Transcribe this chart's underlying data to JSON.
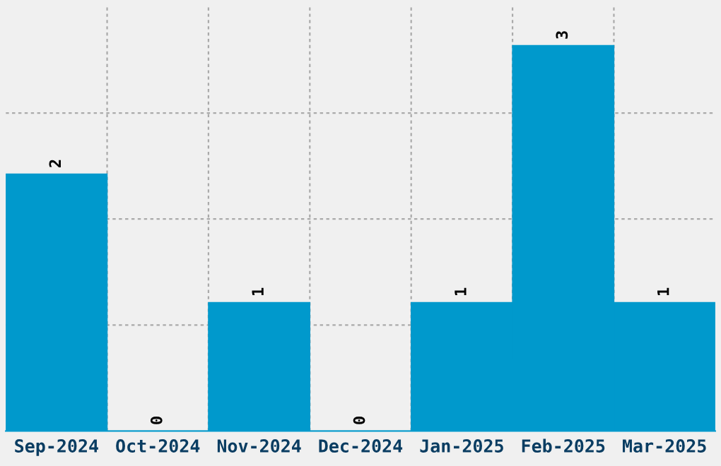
{
  "chart_data": {
    "type": "bar",
    "categories": [
      "Sep-2024",
      "Oct-2024",
      "Nov-2024",
      "Dec-2024",
      "Jan-2025",
      "Feb-2025",
      "Mar-2025"
    ],
    "values": [
      2,
      0,
      1,
      0,
      1,
      3,
      1
    ],
    "color": "#0099cc",
    "ylim": [
      0,
      3.3
    ],
    "yticks": [
      {
        "value": 0.825,
        "label": null
      },
      {
        "value": 1.65,
        "label": null
      },
      {
        "value": 2.475,
        "label": null
      }
    ],
    "data_labels": true,
    "grid": true
  }
}
